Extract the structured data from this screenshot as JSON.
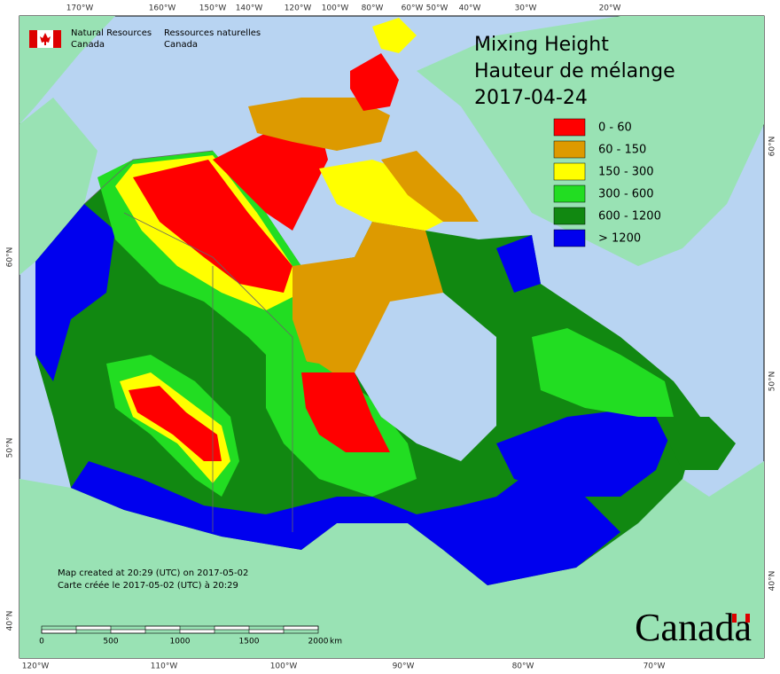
{
  "header": {
    "org_en_1": "Natural Resources",
    "org_en_2": "Canada",
    "org_fr_1": "Ressources naturelles",
    "org_fr_2": "Canada"
  },
  "title": {
    "line1": "Mixing Height",
    "line2": "Hauteur de mélange",
    "date": "2017-04-24"
  },
  "legend": [
    {
      "label": "0 - 60",
      "color": "#ff0000"
    },
    {
      "label": "60 - 150",
      "color": "#dd9a00"
    },
    {
      "label": "150 - 300",
      "color": "#ffff00"
    },
    {
      "label": "300 - 600",
      "color": "#22dd22"
    },
    {
      "label": "600 - 1200",
      "color": "#118811"
    },
    {
      "label": "> 1200",
      "color": "#0000ee"
    }
  ],
  "footer": {
    "created_en": "Map created at 20:29 (UTC) on 2017-05-02",
    "created_fr": "Carte créée le 2017-05-02 (UTC) à 20:29"
  },
  "scale_bar": {
    "labels": [
      "0",
      "500",
      "1000",
      "1500",
      "2000"
    ],
    "unit": "km"
  },
  "graticule": {
    "top": [
      "170°W",
      "160°W",
      "150°W",
      "140°W",
      "120°W",
      "100°W",
      "80°W",
      "60°W",
      "50°W",
      "40°W",
      "30°W",
      "20°W"
    ],
    "bottom": [
      "120°W",
      "110°W",
      "100°W",
      "90°W",
      "80°W",
      "70°W"
    ],
    "left": [
      "60°N",
      "50°N",
      "40°N"
    ],
    "right": [
      "60°N",
      "50°N",
      "40°N"
    ]
  },
  "wordmark": "Canada"
}
